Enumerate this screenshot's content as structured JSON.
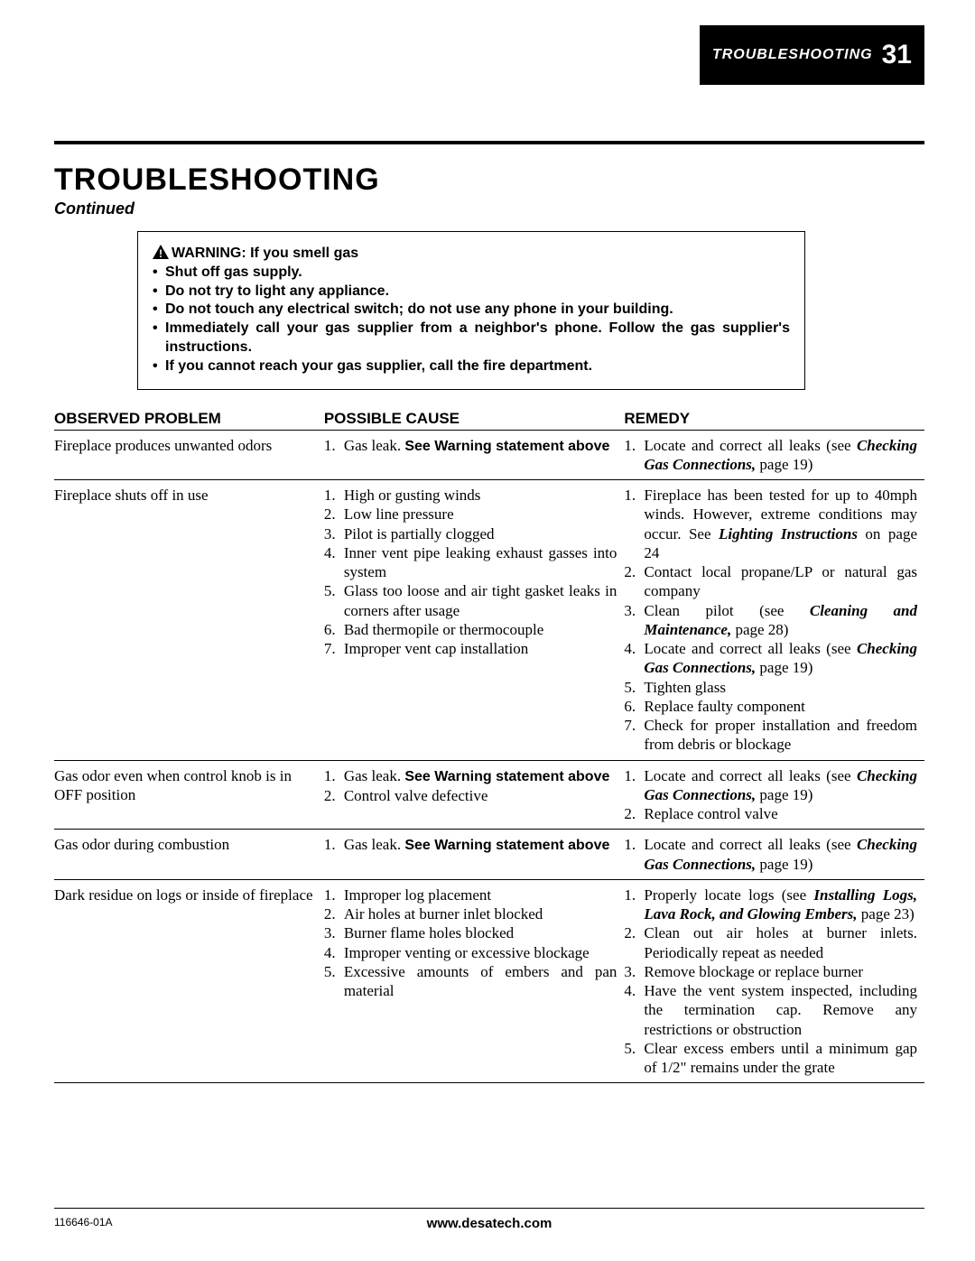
{
  "header": {
    "section_label": "TROUBLESHOOTING",
    "page_number": "31"
  },
  "title": "TROUBLESHOOTING",
  "subtitle": "Continued",
  "warning": {
    "lead": "WARNING: If you smell gas",
    "items": [
      "Shut off gas supply.",
      "Do not try to light any appliance.",
      "Do not touch any electrical switch; do not use any phone in your building.",
      "Immediately call your gas supplier from a neighbor's phone. Follow the gas supplier's instructions.",
      "If you cannot reach your gas supplier, call the fire department."
    ]
  },
  "table": {
    "headers": {
      "problem": "OBSERVED PROBLEM",
      "cause": "POSSIBLE CAUSE",
      "remedy": "REMEDY"
    },
    "rows": [
      {
        "problem": "Fireplace produces unwanted odors",
        "causes": [
          {
            "pre": "Gas leak. ",
            "bold": "See Warning statement above"
          }
        ],
        "remedies": [
          {
            "pre": "Locate and correct all leaks (see ",
            "bi": "Checking Gas Connections,",
            "post": " page 19)"
          }
        ]
      },
      {
        "problem": "Fireplace shuts off in use",
        "causes": [
          {
            "pre": "High or gusting winds"
          },
          {
            "pre": "Low line pressure"
          },
          {
            "pre": "Pilot is partially clogged"
          },
          {
            "pre": "Inner vent pipe leaking exhaust gasses into system"
          },
          {
            "pre": "Glass too loose and air tight gasket leaks in corners after usage"
          },
          {
            "pre": "Bad thermopile or thermocouple"
          },
          {
            "pre": "Improper vent cap installation"
          }
        ],
        "remedies": [
          {
            "pre": "Fireplace has been tested for up to 40mph winds. However, extreme conditions may occur. See ",
            "bi": "Lighting Instructions",
            "post": " on page 24"
          },
          {
            "pre": "Contact local propane/LP or natural gas company"
          },
          {
            "pre": "Clean pilot (see ",
            "bi": "Cleaning and Maintenance,",
            "post": " page 28)"
          },
          {
            "pre": "Locate and correct all leaks (see ",
            "bi": "Checking Gas Connections,",
            "post": " page 19)"
          },
          {
            "pre": "Tighten glass"
          },
          {
            "pre": "Replace faulty component"
          },
          {
            "pre": "Check for proper installation and freedom from debris or blockage"
          }
        ]
      },
      {
        "problem": "Gas odor even when control knob is in OFF position",
        "causes": [
          {
            "pre": "Gas leak. ",
            "bold": "See Warning statement above"
          },
          {
            "pre": "Control valve defective"
          }
        ],
        "remedies": [
          {
            "pre": "Locate and correct all leaks (see ",
            "bi": "Checking Gas Connections,",
            "post": " page 19)"
          },
          {
            "pre": "Replace control valve"
          }
        ]
      },
      {
        "problem": "Gas odor during combustion",
        "causes": [
          {
            "pre": "Gas leak. ",
            "bold": "See Warning statement above"
          }
        ],
        "remedies": [
          {
            "pre": "Locate and correct all leaks (see ",
            "bi": "Checking Gas Connections,",
            "post": " page 19)"
          }
        ]
      },
      {
        "problem": "Dark residue on logs or inside of fireplace",
        "causes": [
          {
            "pre": "Improper log placement"
          },
          {
            "pre": "Air holes at burner inlet blocked"
          },
          {
            "pre": "Burner flame holes blocked"
          },
          {
            "pre": "Improper venting or excessive blockage"
          },
          {
            "pre": "Excessive amounts of embers and pan material"
          }
        ],
        "remedies": [
          {
            "pre": "Properly locate logs (see ",
            "bi": "Installing Logs, Lava Rock, and Glowing Embers,",
            "post": " page 23)"
          },
          {
            "pre": "Clean out air holes at burner inlets. Periodically repeat as needed"
          },
          {
            "pre": "Remove blockage or replace burner"
          },
          {
            "pre": "Have the vent system inspected, including the termination cap. Remove any restrictions or obstruction"
          },
          {
            "pre": "Clear excess embers until a minimum gap of 1/2\" remains under the grate"
          }
        ]
      }
    ]
  },
  "footer": {
    "doc_number": "116646-01A",
    "url": "www.desatech.com"
  },
  "colors": {
    "text": "#000000",
    "background": "#ffffff",
    "header_bg": "#000000",
    "header_fg": "#ffffff"
  }
}
